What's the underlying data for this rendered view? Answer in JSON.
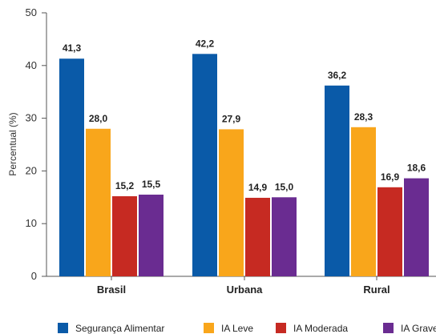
{
  "chart_data": {
    "type": "bar",
    "title": "",
    "xlabel": "",
    "ylabel": "Percentual (%)",
    "ylim": [
      0,
      50
    ],
    "yticks": [
      0,
      10,
      20,
      30,
      40,
      50
    ],
    "categories": [
      "Brasil",
      "Urbana",
      "Rural"
    ],
    "series": [
      {
        "name": "Segurança Alimentar",
        "color": "#0a5aa8",
        "values": [
          41.3,
          42.2,
          36.2
        ],
        "labels": [
          "41,3",
          "42,2",
          "36,2"
        ]
      },
      {
        "name": "IA Leve",
        "color": "#f9a61b",
        "values": [
          28.0,
          27.9,
          28.3
        ],
        "labels": [
          "28,0",
          "27,9",
          "28,3"
        ]
      },
      {
        "name": "IA Moderada",
        "color": "#c62a22",
        "values": [
          15.2,
          14.9,
          16.9
        ],
        "labels": [
          "15,2",
          "14,9",
          "16,9"
        ]
      },
      {
        "name": "IA Grave",
        "color": "#6a2c91",
        "values": [
          15.5,
          15.0,
          18.6
        ],
        "labels": [
          "15,5",
          "15,0",
          "18,6"
        ]
      }
    ],
    "legend_placement": "bottom",
    "grid": false
  }
}
